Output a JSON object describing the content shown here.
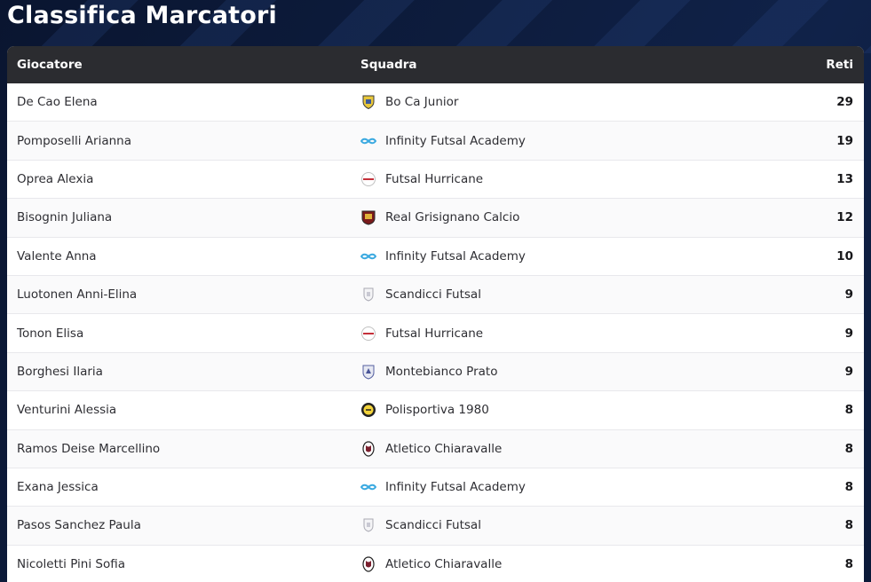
{
  "page": {
    "title": "Classifica Marcatori"
  },
  "table": {
    "headers": {
      "player": "Giocatore",
      "team": "Squadra",
      "goals": "Reti"
    },
    "rows": [
      {
        "player": "De Cao Elena",
        "team": "Bo Ca Junior",
        "goals": "29",
        "logo": "bo-ca-junior-crest-icon"
      },
      {
        "player": "Pomposelli Arianna",
        "team": "Infinity Futsal Academy",
        "goals": "19",
        "logo": "infinity-futsal-academy-crest-icon"
      },
      {
        "player": "Oprea Alexia",
        "team": "Futsal Hurricane",
        "goals": "13",
        "logo": "futsal-hurricane-crest-icon"
      },
      {
        "player": "Bisognin Juliana",
        "team": "Real Grisignano Calcio",
        "goals": "12",
        "logo": "real-grisignano-crest-icon"
      },
      {
        "player": "Valente Anna",
        "team": "Infinity Futsal Academy",
        "goals": "10",
        "logo": "infinity-futsal-academy-crest-icon"
      },
      {
        "player": "Luotonen Anni-Elina",
        "team": "Scandicci Futsal",
        "goals": "9",
        "logo": "scandicci-futsal-crest-icon"
      },
      {
        "player": "Tonon Elisa",
        "team": "Futsal Hurricane",
        "goals": "9",
        "logo": "futsal-hurricane-crest-icon"
      },
      {
        "player": "Borghesi Ilaria",
        "team": "Montebianco Prato",
        "goals": "9",
        "logo": "montebianco-prato-crest-icon"
      },
      {
        "player": "Venturini Alessia",
        "team": "Polisportiva 1980",
        "goals": "8",
        "logo": "polisportiva-1980-crest-icon"
      },
      {
        "player": "Ramos Deise Marcellino",
        "team": "Atletico Chiaravalle",
        "goals": "8",
        "logo": "atletico-chiaravalle-crest-icon"
      },
      {
        "player": "Exana Jessica",
        "team": "Infinity Futsal Academy",
        "goals": "8",
        "logo": "infinity-futsal-academy-crest-icon"
      },
      {
        "player": "Pasos Sanchez Paula",
        "team": "Scandicci Futsal",
        "goals": "8",
        "logo": "scandicci-futsal-crest-icon"
      },
      {
        "player": "Nicoletti Pini Sofia",
        "team": "Atletico Chiaravalle",
        "goals": "8",
        "logo": "atletico-chiaravalle-crest-icon"
      }
    ]
  },
  "colors": {
    "background": "#0d1c3d",
    "header_bg": "#2b2c30",
    "row_bg": "#ffffff",
    "text": "#2e2e33"
  }
}
